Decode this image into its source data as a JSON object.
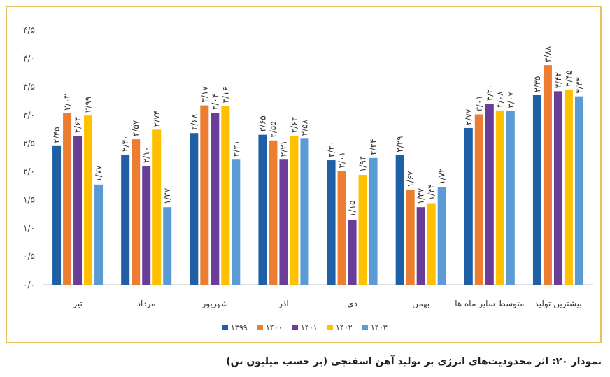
{
  "chart_data": {
    "type": "bar",
    "title": "نمودار ۲۰: اثر محدودیت‌های انرژی بر تولید آهن اسفنجی (بر حسب میلیون تن)",
    "xlabel": "",
    "ylabel": "",
    "ylim": [
      0,
      4.5
    ],
    "yticks": [
      0,
      0.5,
      1,
      1.5,
      2,
      2.5,
      3,
      3.5,
      4,
      4.5
    ],
    "ytick_labels": [
      "۰/۰",
      "۰/۵",
      "۱/۰",
      "۱/۵",
      "۲/۰",
      "۲/۵",
      "۳/۰",
      "۳/۵",
      "۴/۰",
      "۴/۵"
    ],
    "categories": [
      "تیر",
      "مرداد",
      "شهریور",
      "آذر",
      "دی",
      "بهمن",
      "متوسط سایر ماه ها",
      "بیشترین تولید"
    ],
    "series": [
      {
        "name": "۱۳۹۹",
        "color": "#1f5fa6",
        "values": [
          2.45,
          2.3,
          2.68,
          2.65,
          2.2,
          2.29,
          2.77,
          3.35
        ]
      },
      {
        "name": "۱۴۰۰",
        "color": "#ed7d31",
        "values": [
          3.03,
          2.57,
          3.17,
          2.55,
          2.01,
          1.67,
          3.01,
          3.88
        ]
      },
      {
        "name": "۱۴۰۱",
        "color": "#6a3d98",
        "values": [
          2.63,
          2.1,
          3.04,
          2.21,
          1.15,
          1.37,
          3.2,
          3.42
        ]
      },
      {
        "name": "۱۴۰۲",
        "color": "#ffc000",
        "values": [
          2.99,
          2.74,
          3.16,
          2.63,
          1.94,
          1.44,
          3.08,
          3.45
        ]
      },
      {
        "name": "۱۴۰۳",
        "color": "#5b9bd5",
        "values": [
          1.77,
          1.37,
          2.21,
          2.58,
          2.24,
          1.72,
          3.07,
          3.33
        ]
      }
    ],
    "legend_position": "bottom",
    "grid": false
  }
}
